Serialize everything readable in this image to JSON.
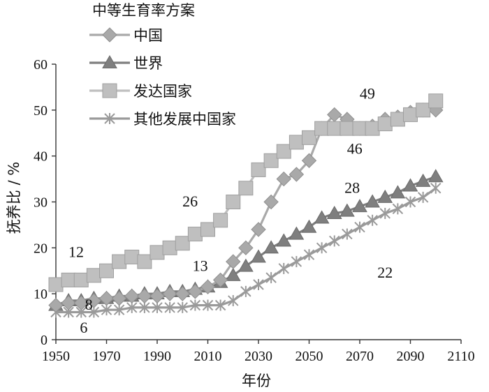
{
  "chart_data": {
    "type": "line",
    "legend_title": "中等生育率方案",
    "xlabel": "年份",
    "ylabel": "抚养比 / %",
    "xlim": [
      1950,
      2110
    ],
    "ylim": [
      0,
      60
    ],
    "x_ticks": [
      1950,
      1970,
      1990,
      2010,
      2030,
      2050,
      2070,
      2090,
      2110
    ],
    "y_ticks": [
      0,
      10,
      20,
      30,
      40,
      50,
      60
    ],
    "legend_position": "top-left",
    "grid": false,
    "series": [
      {
        "name": "中国",
        "marker": "diamond",
        "color": "#a9a9a9",
        "stroke": "#8f8f8f",
        "points": [
          [
            1950,
            7.5
          ],
          [
            1955,
            8
          ],
          [
            1960,
            8
          ],
          [
            1965,
            8.5
          ],
          [
            1970,
            9
          ],
          [
            1975,
            9
          ],
          [
            1980,
            9.5
          ],
          [
            1985,
            9.5
          ],
          [
            1990,
            9.5
          ],
          [
            1995,
            10
          ],
          [
            2000,
            10
          ],
          [
            2005,
            10.5
          ],
          [
            2010,
            11.5
          ],
          [
            2015,
            13
          ],
          [
            2020,
            17
          ],
          [
            2025,
            20
          ],
          [
            2030,
            24
          ],
          [
            2035,
            30
          ],
          [
            2040,
            35
          ],
          [
            2045,
            36
          ],
          [
            2050,
            39
          ],
          [
            2055,
            46
          ],
          [
            2060,
            49
          ],
          [
            2065,
            48
          ],
          [
            2070,
            46
          ],
          [
            2075,
            46.5
          ],
          [
            2080,
            48
          ],
          [
            2085,
            48.5
          ],
          [
            2090,
            49.5
          ],
          [
            2095,
            50
          ],
          [
            2100,
            50
          ]
        ]
      },
      {
        "name": "世界",
        "marker": "triangle",
        "color": "#7f7f7f",
        "stroke": "#6b6b6b",
        "points": [
          [
            1950,
            7.5
          ],
          [
            1955,
            8.5
          ],
          [
            1960,
            8.5
          ],
          [
            1965,
            9
          ],
          [
            1970,
            9
          ],
          [
            1975,
            9.5
          ],
          [
            1980,
            9.5
          ],
          [
            1985,
            10
          ],
          [
            1990,
            10
          ],
          [
            1995,
            10.5
          ],
          [
            2000,
            10.5
          ],
          [
            2005,
            11
          ],
          [
            2010,
            11.5
          ],
          [
            2015,
            12.5
          ],
          [
            2020,
            14
          ],
          [
            2025,
            16
          ],
          [
            2030,
            18
          ],
          [
            2035,
            20
          ],
          [
            2040,
            21.5
          ],
          [
            2045,
            23
          ],
          [
            2050,
            24.5
          ],
          [
            2055,
            26.5
          ],
          [
            2060,
            27.5
          ],
          [
            2065,
            28
          ],
          [
            2070,
            29
          ],
          [
            2075,
            30
          ],
          [
            2080,
            31
          ],
          [
            2085,
            32
          ],
          [
            2090,
            33.5
          ],
          [
            2095,
            34.5
          ],
          [
            2100,
            35.5
          ]
        ]
      },
      {
        "name": "发达国家",
        "marker": "square",
        "color": "#bfbfbf",
        "stroke": "#9f9f9f",
        "points": [
          [
            1950,
            12
          ],
          [
            1955,
            13
          ],
          [
            1960,
            13
          ],
          [
            1965,
            14
          ],
          [
            1970,
            15
          ],
          [
            1975,
            17
          ],
          [
            1980,
            18
          ],
          [
            1985,
            17
          ],
          [
            1990,
            19
          ],
          [
            1995,
            20
          ],
          [
            2000,
            21
          ],
          [
            2005,
            23
          ],
          [
            2010,
            24
          ],
          [
            2015,
            26
          ],
          [
            2020,
            30
          ],
          [
            2025,
            33
          ],
          [
            2030,
            37
          ],
          [
            2035,
            39
          ],
          [
            2040,
            41
          ],
          [
            2045,
            43
          ],
          [
            2050,
            44
          ],
          [
            2055,
            46
          ],
          [
            2060,
            46
          ],
          [
            2065,
            46
          ],
          [
            2070,
            46
          ],
          [
            2075,
            46
          ],
          [
            2080,
            47
          ],
          [
            2085,
            48
          ],
          [
            2090,
            49
          ],
          [
            2095,
            50
          ],
          [
            2100,
            52
          ]
        ]
      },
      {
        "name": "其他发展中国家",
        "marker": "asterisk",
        "color": "#9a9a9a",
        "stroke": "#8a8a8a",
        "points": [
          [
            1950,
            6
          ],
          [
            1955,
            6
          ],
          [
            1960,
            6
          ],
          [
            1965,
            6
          ],
          [
            1970,
            6.5
          ],
          [
            1975,
            6.5
          ],
          [
            1980,
            7
          ],
          [
            1985,
            7
          ],
          [
            1990,
            7
          ],
          [
            1995,
            7
          ],
          [
            2000,
            7
          ],
          [
            2005,
            7.5
          ],
          [
            2010,
            7.5
          ],
          [
            2015,
            7.5
          ],
          [
            2020,
            8.5
          ],
          [
            2025,
            10.5
          ],
          [
            2030,
            12
          ],
          [
            2035,
            13.5
          ],
          [
            2040,
            15.5
          ],
          [
            2045,
            17
          ],
          [
            2050,
            18.5
          ],
          [
            2055,
            20
          ],
          [
            2060,
            21.5
          ],
          [
            2065,
            23
          ],
          [
            2070,
            24.5
          ],
          [
            2075,
            26
          ],
          [
            2080,
            27.5
          ],
          [
            2085,
            28.5
          ],
          [
            2090,
            30
          ],
          [
            2095,
            31
          ],
          [
            2100,
            33
          ]
        ]
      }
    ],
    "annotations": [
      {
        "text": "12",
        "x": 1958,
        "y": 18
      },
      {
        "text": "8",
        "x": 1963,
        "y": 6.5
      },
      {
        "text": "6",
        "x": 1961,
        "y": 1.5
      },
      {
        "text": "26",
        "x": 2003,
        "y": 29
      },
      {
        "text": "13",
        "x": 2007,
        "y": 15
      },
      {
        "text": "49",
        "x": 2073,
        "y": 52.5
      },
      {
        "text": "46",
        "x": 2068,
        "y": 40.5
      },
      {
        "text": "28",
        "x": 2067,
        "y": 32
      },
      {
        "text": "22",
        "x": 2080,
        "y": 13.5
      }
    ]
  }
}
